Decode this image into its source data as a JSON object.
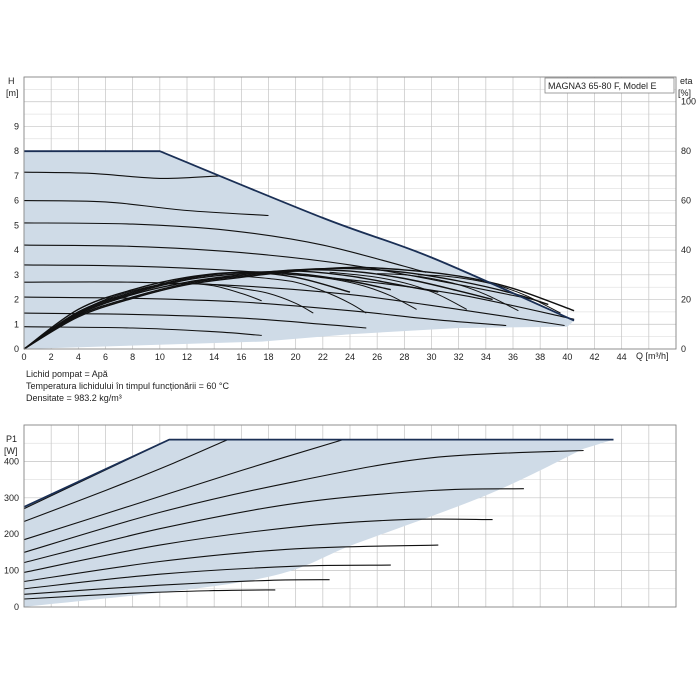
{
  "chart_data": [
    {
      "id": "head",
      "type": "line",
      "title": "MAGNA3 65-80 F, Model E",
      "xlabel": "Q [m³/h]",
      "ylabel": "H\n[m]",
      "y2label": "eta\n[%]",
      "xlim": [
        0,
        48
      ],
      "ylim": [
        0,
        11
      ],
      "y2lim": [
        0,
        110
      ],
      "x_ticks": [
        "0",
        "2",
        "4",
        "6",
        "8",
        "10",
        "12",
        "14",
        "16",
        "18",
        "20",
        "22",
        "24",
        "26",
        "28",
        "30",
        "32",
        "34",
        "36",
        "38",
        "40",
        "42",
        "44"
      ],
      "y_ticks": [
        "0",
        "1",
        "2",
        "3",
        "4",
        "5",
        "6",
        "7",
        "8",
        "9"
      ],
      "y2_ticks": [
        "0",
        "20",
        "40",
        "60",
        "80",
        "100"
      ],
      "grid": true,
      "envelope": {
        "upper": [
          [
            0,
            8
          ],
          [
            10,
            8
          ],
          [
            22,
            5.3
          ],
          [
            30,
            3.7
          ],
          [
            40.5,
            1.15
          ]
        ],
        "lower": [
          [
            40,
            0.9
          ],
          [
            32,
            0.85
          ],
          [
            24,
            0.6
          ],
          [
            17.5,
            0.3
          ],
          [
            0,
            0
          ]
        ]
      },
      "max_curve": [
        [
          0,
          8
        ],
        [
          10,
          8
        ],
        [
          22,
          5.3
        ],
        [
          30,
          3.7
        ],
        [
          40.5,
          1.15
        ]
      ],
      "speed_curves": [
        {
          "values": [
            [
              0,
              7.15
            ],
            [
              5,
              7.1
            ],
            [
              10,
              6.9
            ],
            [
              14.4,
              7.0
            ]
          ]
        },
        {
          "values": [
            [
              0,
              6.0
            ],
            [
              6,
              5.95
            ],
            [
              12,
              5.6
            ],
            [
              18,
              5.4
            ]
          ]
        },
        {
          "values": [
            [
              0,
              5.1
            ],
            [
              8,
              5.05
            ],
            [
              15,
              4.8
            ],
            [
              22,
              4.2
            ],
            [
              29.6,
              3.1
            ]
          ]
        },
        {
          "values": [
            [
              0,
              4.2
            ],
            [
              8,
              4.15
            ],
            [
              16,
              3.9
            ],
            [
              24,
              3.4
            ],
            [
              32,
              2.6
            ],
            [
              37.5,
              2.0
            ]
          ]
        },
        {
          "values": [
            [
              0,
              3.4
            ],
            [
              8,
              3.35
            ],
            [
              16,
              3.15
            ],
            [
              24,
              2.8
            ],
            [
              32,
              2.2
            ],
            [
              40.5,
              1.2
            ]
          ]
        },
        {
          "values": [
            [
              0,
              2.7
            ],
            [
              8,
              2.7
            ],
            [
              16,
              2.55
            ],
            [
              24,
              2.2
            ],
            [
              32,
              1.6
            ],
            [
              39.8,
              0.95
            ]
          ]
        },
        {
          "values": [
            [
              0,
              2.1
            ],
            [
              8,
              2.05
            ],
            [
              16,
              1.9
            ],
            [
              24,
              1.55
            ],
            [
              30,
              1.2
            ],
            [
              35.5,
              0.95
            ]
          ]
        },
        {
          "values": [
            [
              0,
              1.45
            ],
            [
              8,
              1.4
            ],
            [
              16,
              1.25
            ],
            [
              22,
              1.0
            ],
            [
              25.2,
              0.85
            ]
          ]
        },
        {
          "values": [
            [
              0,
              0.9
            ],
            [
              8,
              0.85
            ],
            [
              14,
              0.7
            ],
            [
              17.5,
              0.55
            ]
          ]
        }
      ],
      "efficiency_curves": [
        {
          "values": [
            [
              0,
              0
            ],
            [
              4,
              1.6
            ],
            [
              8,
              2.4
            ],
            [
              12,
              2.9
            ],
            [
              16,
              3.1
            ],
            [
              20,
              2.9
            ],
            [
              24,
              2.3
            ]
          ]
        },
        {
          "values": [
            [
              0,
              0
            ],
            [
              4,
              1.5
            ],
            [
              8,
              2.3
            ],
            [
              12,
              2.85
            ],
            [
              16,
              3.1
            ],
            [
              20,
              3.05
            ],
            [
              24,
              2.75
            ],
            [
              27,
              2.4
            ]
          ]
        },
        {
          "values": [
            [
              0,
              0
            ],
            [
              4,
              1.45
            ],
            [
              8,
              2.25
            ],
            [
              12,
              2.8
            ],
            [
              16,
              3.05
            ],
            [
              20,
              3.15
            ],
            [
              24,
              2.95
            ],
            [
              28,
              2.55
            ],
            [
              30.5,
              2.3
            ]
          ]
        },
        {
          "values": [
            [
              0,
              0
            ],
            [
              4,
              1.4
            ],
            [
              8,
              2.2
            ],
            [
              12,
              2.7
            ],
            [
              16,
              3.0
            ],
            [
              20,
              3.2
            ],
            [
              24,
              3.15
            ],
            [
              28,
              2.85
            ],
            [
              32,
              2.35
            ],
            [
              34.5,
              2.0
            ]
          ]
        },
        {
          "values": [
            [
              0,
              0
            ],
            [
              4,
              1.35
            ],
            [
              8,
              2.1
            ],
            [
              12,
              2.65
            ],
            [
              16,
              2.95
            ],
            [
              20,
              3.2
            ],
            [
              24,
              3.25
            ],
            [
              28,
              3.1
            ],
            [
              32,
              2.75
            ],
            [
              36,
              2.25
            ],
            [
              38.6,
              1.8
            ]
          ]
        },
        {
          "values": [
            [
              0,
              0
            ],
            [
              4,
              1.3
            ],
            [
              8,
              2.05
            ],
            [
              12,
              2.6
            ],
            [
              16,
              2.9
            ],
            [
              20,
              3.15
            ],
            [
              24,
              3.3
            ],
            [
              28,
              3.2
            ],
            [
              32,
              2.95
            ],
            [
              36,
              2.45
            ],
            [
              40.5,
              1.55
            ]
          ]
        }
      ],
      "operating_curves": [
        {
          "values": [
            [
              4.2,
              1.55
            ],
            [
              6,
              2.0
            ],
            [
              8,
              2.35
            ],
            [
              10,
              2.6
            ],
            [
              12,
              2.65
            ],
            [
              14,
              2.55
            ],
            [
              16,
              2.25
            ],
            [
              17.5,
              1.95
            ]
          ]
        },
        {
          "values": [
            [
              12.5,
              2.65
            ],
            [
              14,
              2.6
            ],
            [
              16,
              2.45
            ],
            [
              18,
              2.25
            ],
            [
              20,
              1.85
            ],
            [
              21.3,
              1.45
            ]
          ]
        },
        {
          "values": [
            [
              16,
              2.95
            ],
            [
              18,
              2.85
            ],
            [
              20,
              2.7
            ],
            [
              22,
              2.35
            ],
            [
              24,
              1.85
            ],
            [
              25.2,
              1.45
            ]
          ]
        },
        {
          "values": [
            [
              19,
              3.05
            ],
            [
              21,
              2.95
            ],
            [
              23,
              2.8
            ],
            [
              25,
              2.55
            ],
            [
              27,
              2.15
            ],
            [
              28.9,
              1.6
            ]
          ]
        },
        {
          "values": [
            [
              22.5,
              3.1
            ],
            [
              24.5,
              3.0
            ],
            [
              26.5,
              2.85
            ],
            [
              28.5,
              2.6
            ],
            [
              30.5,
              2.2
            ],
            [
              32.6,
              1.6
            ]
          ]
        },
        {
          "values": [
            [
              26,
              3.05
            ],
            [
              28,
              3.0
            ],
            [
              30,
              2.85
            ],
            [
              32,
              2.6
            ],
            [
              34,
              2.2
            ],
            [
              36.4,
              1.55
            ]
          ]
        },
        {
          "values": [
            [
              29,
              3.0
            ],
            [
              31,
              2.95
            ],
            [
              33,
              2.8
            ],
            [
              35,
              2.55
            ],
            [
              37,
              2.15
            ],
            [
              39.5,
              1.45
            ]
          ]
        }
      ]
    },
    {
      "id": "power",
      "type": "line",
      "title": "",
      "xlabel": "",
      "ylabel": "P1\n[W]",
      "xlim": [
        0,
        48
      ],
      "ylim": [
        0,
        500
      ],
      "y_ticks": [
        "0",
        "100",
        "200",
        "300",
        "400"
      ],
      "grid": true,
      "envelope": {
        "upper": [
          [
            0,
            275
          ],
          [
            10.7,
            460
          ],
          [
            43.4,
            460
          ]
        ],
        "lower": [
          [
            41.2,
            435
          ],
          [
            34.2,
            310
          ],
          [
            24.5,
            175
          ],
          [
            17,
            75
          ],
          [
            0,
            0
          ]
        ]
      },
      "max_curve": [
        [
          0,
          275
        ],
        [
          10.7,
          460
        ],
        [
          43.4,
          460
        ]
      ],
      "speed_curves": [
        {
          "values": [
            [
              0,
              270
            ],
            [
              10.7,
              460
            ],
            [
              43.4,
              460
            ]
          ]
        },
        {
          "values": [
            [
              0,
              235
            ],
            [
              6,
              320
            ],
            [
              11,
              395
            ],
            [
              15,
              460
            ]
          ]
        },
        {
          "values": [
            [
              0,
              185
            ],
            [
              8,
              280
            ],
            [
              16,
              375
            ],
            [
              23.5,
              460
            ]
          ]
        },
        {
          "values": [
            [
              0,
              150
            ],
            [
              10,
              260
            ],
            [
              20,
              345
            ],
            [
              30,
              410
            ],
            [
              41.2,
              430
            ]
          ]
        },
        {
          "values": [
            [
              0,
              122
            ],
            [
              10,
              215
            ],
            [
              20,
              285
            ],
            [
              30,
              320
            ],
            [
              36.8,
              325
            ]
          ]
        },
        {
          "values": [
            [
              0,
              95
            ],
            [
              10,
              170
            ],
            [
              20,
              220
            ],
            [
              28,
              240
            ],
            [
              34.5,
              240
            ]
          ]
        },
        {
          "values": [
            [
              0,
              70
            ],
            [
              10,
              125
            ],
            [
              20,
              160
            ],
            [
              30.5,
              170
            ]
          ]
        },
        {
          "values": [
            [
              0,
              50
            ],
            [
              10,
              90
            ],
            [
              20,
              112
            ],
            [
              27,
              115
            ]
          ]
        },
        {
          "values": [
            [
              0,
              35
            ],
            [
              10,
              60
            ],
            [
              18,
              73
            ],
            [
              22.5,
              75
            ]
          ]
        },
        {
          "values": [
            [
              0,
              22
            ],
            [
              8,
              38
            ],
            [
              14,
              45
            ],
            [
              18.5,
              47
            ]
          ]
        }
      ]
    }
  ],
  "info": {
    "line1": "Lichid pompat = Apă",
    "line2": "Temperatura lichidului în timpul funcționării = 60 °C",
    "line3": "Densitate = 983.2 kg/m³"
  },
  "style": {
    "envelope_fill": "#cfdbe7",
    "envelope_stroke": "#1a2f55",
    "curve_stroke": "#111111",
    "grid": "#c4c4c4",
    "frame": "#888888"
  }
}
